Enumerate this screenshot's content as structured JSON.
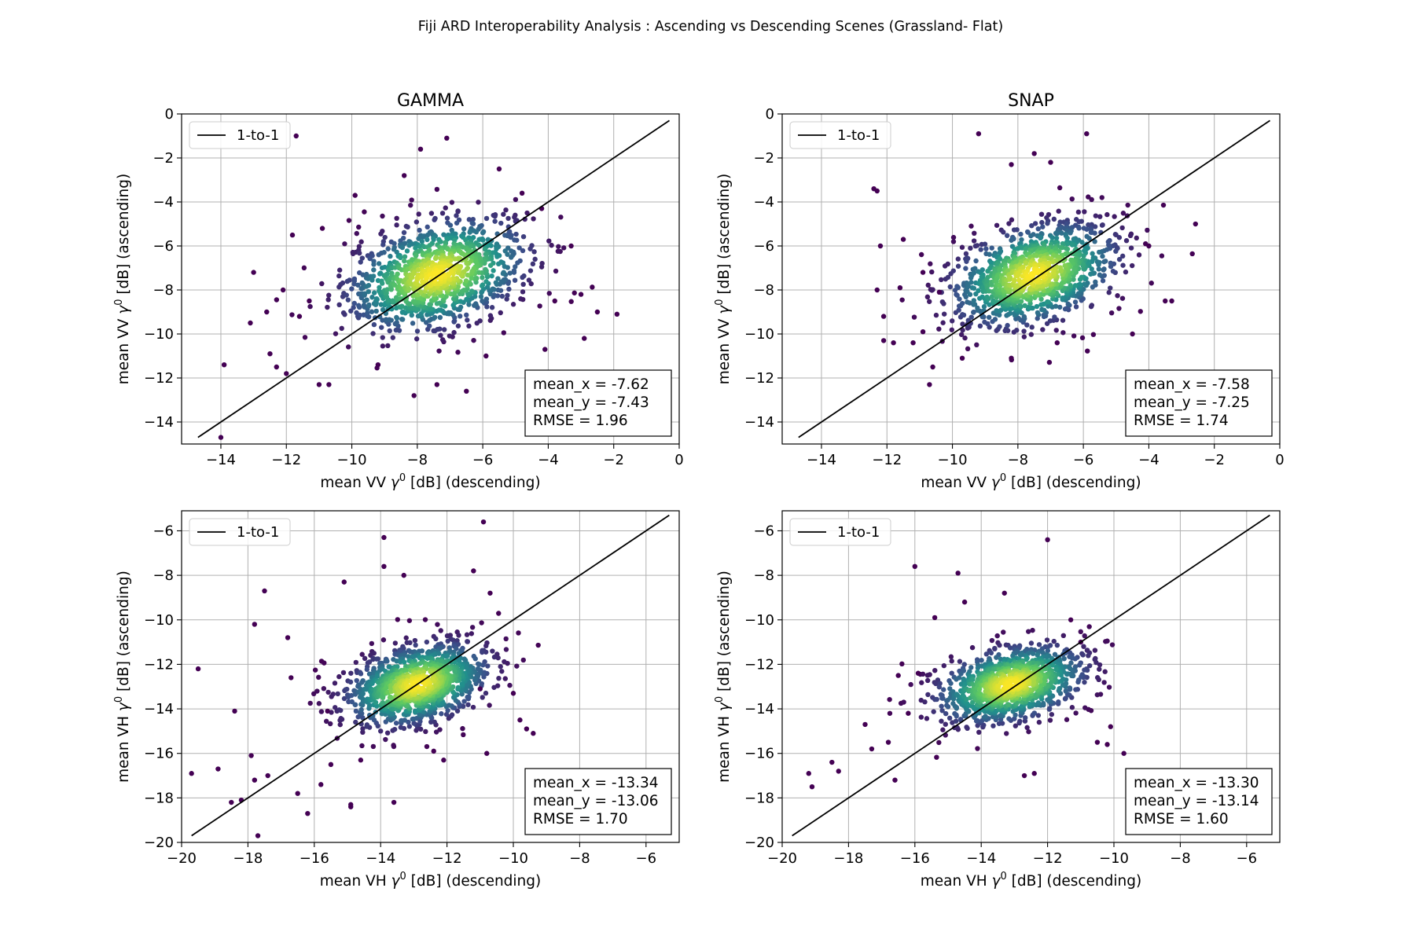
{
  "figure": {
    "title": "Fiji ARD Interoperability Analysis : Ascending vs Descending Scenes (Grassland- Flat)"
  },
  "colors": {
    "density_low": "#440154",
    "density_mid": "#21918c",
    "density_high": "#fde725",
    "reference_line": "#000000"
  },
  "chart_data": [
    {
      "type": "scatter",
      "title": "GAMMA",
      "xlabel": "mean VV γ0 [dB] (descending)",
      "ylabel": "mean VV γ0 [dB] (ascending)",
      "xlim": [
        -15.2,
        0
      ],
      "ylim": [
        -15,
        0
      ],
      "xticks": [
        -14,
        -12,
        -10,
        -8,
        -6,
        -4,
        -2,
        0
      ],
      "yticks": [
        -14,
        -12,
        -10,
        -8,
        -6,
        -4,
        -2,
        0
      ],
      "grid": true,
      "legend": {
        "position": "top-left",
        "entries": [
          "1-to-1"
        ]
      },
      "reference_line": {
        "name": "1-to-1",
        "from": [
          -14.7,
          -14.7
        ],
        "to": [
          -0.3,
          -0.3
        ]
      },
      "cluster": {
        "center": [
          -7.4,
          -7.3
        ],
        "spread": [
          1.4,
          1.3
        ],
        "count": 1100
      },
      "outliers": [
        [
          -14,
          -14.7
        ],
        [
          -13.9,
          -11.4
        ],
        [
          -13,
          -7.2
        ],
        [
          -13.1,
          -9.5
        ],
        [
          -12.6,
          -9
        ],
        [
          -12.5,
          -10.9
        ],
        [
          -12.3,
          -11.5
        ],
        [
          -12,
          -11.8
        ],
        [
          -11.6,
          -9.2
        ],
        [
          -11.3,
          -8.5
        ],
        [
          -11,
          -12.3
        ],
        [
          -10.7,
          -12.3
        ],
        [
          -11.7,
          -1
        ],
        [
          -7.9,
          -1.6
        ],
        [
          -7.1,
          -1.1
        ],
        [
          -5.5,
          -2.5
        ],
        [
          -8.4,
          -2.8
        ],
        [
          -6.5,
          -12.6
        ],
        [
          -8.1,
          -12.8
        ],
        [
          -4.2,
          -4.3
        ],
        [
          -3.3,
          -6
        ],
        [
          -2.9,
          -10.2
        ],
        [
          -2.5,
          -9
        ],
        [
          -1.9,
          -9.1
        ],
        [
          -4.1,
          -10.7
        ],
        [
          -5.9,
          -11
        ],
        [
          -9.2,
          -11.4
        ],
        [
          -7.4,
          -12.3
        ],
        [
          -3.8,
          -8.5
        ],
        [
          -9.9,
          -3.7
        ],
        [
          -10.9,
          -5.2
        ],
        [
          -4.8,
          -3.6
        ],
        [
          -3.0,
          -8.2
        ],
        [
          -12.1,
          -8.0
        ]
      ],
      "stats": {
        "mean_x": -7.62,
        "mean_y": -7.43,
        "RMSE": 1.96
      },
      "stats_text": [
        "mean_x = -7.62",
        "mean_y = -7.43",
        "RMSE = 1.96"
      ]
    },
    {
      "type": "scatter",
      "title": "SNAP",
      "xlabel": "mean VV γ0 [dB] (descending)",
      "ylabel": "mean VV γ0 [dB] (ascending)",
      "xlim": [
        -15.2,
        0
      ],
      "ylim": [
        -15,
        0
      ],
      "xticks": [
        -14,
        -12,
        -10,
        -8,
        -6,
        -4,
        -2,
        0
      ],
      "yticks": [
        -14,
        -12,
        -10,
        -8,
        -6,
        -4,
        -2,
        0
      ],
      "grid": true,
      "legend": {
        "position": "top-left",
        "entries": [
          "1-to-1"
        ]
      },
      "reference_line": {
        "name": "1-to-1",
        "from": [
          -14.7,
          -14.7
        ],
        "to": [
          -0.3,
          -0.3
        ]
      },
      "cluster": {
        "center": [
          -7.5,
          -7.3
        ],
        "spread": [
          1.3,
          1.2
        ],
        "count": 1100
      },
      "outliers": [
        [
          -12.4,
          -3.4
        ],
        [
          -12.3,
          -3.5
        ],
        [
          -12.2,
          -6
        ],
        [
          -12.1,
          -10.3
        ],
        [
          -12.3,
          -8
        ],
        [
          -12.1,
          -9.2
        ],
        [
          -11.5,
          -5.7
        ],
        [
          -11.8,
          -10.4
        ],
        [
          -11.2,
          -10.4
        ],
        [
          -10.9,
          -9.9
        ],
        [
          -10.6,
          -11.5
        ],
        [
          -10.7,
          -12.3
        ],
        [
          -9.2,
          -0.9
        ],
        [
          -7.5,
          -1.8
        ],
        [
          -5.9,
          -0.9
        ],
        [
          -8.2,
          -2.3
        ],
        [
          -7,
          -2.2
        ],
        [
          -3.5,
          -8.5
        ],
        [
          -3.3,
          -8.5
        ],
        [
          -4.1,
          -5.9
        ],
        [
          -4.5,
          -10
        ],
        [
          -4,
          -6
        ],
        [
          -9.7,
          -11.1
        ],
        [
          -8.2,
          -11.1
        ],
        [
          -6.8,
          -10.4
        ],
        [
          -10.9,
          -7.2
        ],
        [
          -10.4,
          -8.1
        ],
        [
          -11.6,
          -7.9
        ]
      ],
      "stats": {
        "mean_x": -7.58,
        "mean_y": -7.25,
        "RMSE": 1.74
      },
      "stats_text": [
        "mean_x = -7.58",
        "mean_y = -7.25",
        "RMSE = 1.74"
      ]
    },
    {
      "type": "scatter",
      "title": "",
      "xlabel": "mean VH γ0 [dB] (descending)",
      "ylabel": "mean VH γ0 [dB] (ascending)",
      "xlim": [
        -20,
        -5
      ],
      "ylim": [
        -20,
        -5.1
      ],
      "xticks": [
        -20,
        -18,
        -16,
        -14,
        -12,
        -10,
        -8,
        -6
      ],
      "yticks": [
        -20,
        -18,
        -16,
        -14,
        -12,
        -10,
        -8,
        -6
      ],
      "grid": true,
      "legend": {
        "position": "top-left",
        "entries": [
          "1-to-1"
        ]
      },
      "reference_line": {
        "name": "1-to-1",
        "from": [
          -19.7,
          -19.7
        ],
        "to": [
          -5.3,
          -5.3
        ]
      },
      "cluster": {
        "center": [
          -12.9,
          -12.9
        ],
        "spread": [
          1.1,
          0.95
        ],
        "count": 1100
      },
      "outliers": [
        [
          -19.7,
          -16.9
        ],
        [
          -19.5,
          -12.2
        ],
        [
          -18.9,
          -16.7
        ],
        [
          -18.5,
          -18.2
        ],
        [
          -18.4,
          -14.1
        ],
        [
          -18.2,
          -18.1
        ],
        [
          -17.9,
          -16.1
        ],
        [
          -17.8,
          -17.2
        ],
        [
          -17.7,
          -19.7
        ],
        [
          -17.4,
          -17
        ],
        [
          -17.5,
          -8.7
        ],
        [
          -17.8,
          -10.2
        ],
        [
          -16.8,
          -10.8
        ],
        [
          -16.7,
          -12.6
        ],
        [
          -16.5,
          -17.8
        ],
        [
          -16.2,
          -18.7
        ],
        [
          -15.8,
          -17.4
        ],
        [
          -15.5,
          -16.5
        ],
        [
          -14.9,
          -18.4
        ],
        [
          -14.9,
          -18.3
        ],
        [
          -13.9,
          -6.3
        ],
        [
          -13.6,
          -18.2
        ],
        [
          -13.9,
          -7.6
        ],
        [
          -13.3,
          -8
        ],
        [
          -15.1,
          -8.3
        ],
        [
          -11.2,
          -7.8
        ],
        [
          -10.9,
          -5.6
        ],
        [
          -10.7,
          -8.8
        ],
        [
          -9.6,
          -14.9
        ],
        [
          -9.4,
          -15.1
        ],
        [
          -9.8,
          -14.5
        ],
        [
          -10.8,
          -16
        ],
        [
          -12.1,
          -16.3
        ],
        [
          -12.4,
          -15.9
        ],
        [
          -11.0,
          -13.1
        ],
        [
          -10.0,
          -13.3
        ],
        [
          -14.6,
          -16.3
        ],
        [
          -15.6,
          -14.1
        ]
      ],
      "stats": {
        "mean_x": -13.34,
        "mean_y": -13.06,
        "RMSE": 1.7
      },
      "stats_text": [
        "mean_x = -13.34",
        "mean_y = -13.06",
        "RMSE = 1.70"
      ]
    },
    {
      "type": "scatter",
      "title": "",
      "xlabel": "mean VH γ0 [dB] (descending)",
      "ylabel": "mean VH γ0 [dB] (ascending)",
      "xlim": [
        -20,
        -5
      ],
      "ylim": [
        -20,
        -5.1
      ],
      "xticks": [
        -20,
        -18,
        -16,
        -14,
        -12,
        -10,
        -8,
        -6
      ],
      "yticks": [
        -20,
        -18,
        -16,
        -14,
        -12,
        -10,
        -8,
        -6
      ],
      "grid": true,
      "legend": {
        "position": "top-left",
        "entries": [
          "1-to-1"
        ]
      },
      "reference_line": {
        "name": "1-to-1",
        "from": [
          -19.7,
          -19.7
        ],
        "to": [
          -5.3,
          -5.3
        ]
      },
      "cluster": {
        "center": [
          -13.1,
          -12.9
        ],
        "spread": [
          1.15,
          0.9
        ],
        "count": 1100
      },
      "outliers": [
        [
          -19.2,
          -16.9
        ],
        [
          -19.1,
          -17.5
        ],
        [
          -18.5,
          -16.4
        ],
        [
          -18.3,
          -16.8
        ],
        [
          -17.5,
          -14.7
        ],
        [
          -17.3,
          -15.8
        ],
        [
          -16.8,
          -15.5
        ],
        [
          -16.6,
          -17.2
        ],
        [
          -16.2,
          -14.2
        ],
        [
          -16.0,
          -7.6
        ],
        [
          -14.7,
          -7.9
        ],
        [
          -14.5,
          -9.2
        ],
        [
          -13.3,
          -8.8
        ],
        [
          -12.0,
          -6.4
        ],
        [
          -11.3,
          -10.0
        ],
        [
          -11.0,
          -11.0
        ],
        [
          -9.7,
          -16.0
        ],
        [
          -10.2,
          -15.6
        ],
        [
          -10.1,
          -14.8
        ],
        [
          -10.5,
          -15.5
        ],
        [
          -12.4,
          -16.9
        ],
        [
          -12.7,
          -17.0
        ],
        [
          -15.9,
          -12.4
        ],
        [
          -16.5,
          -12.5
        ],
        [
          -15.4,
          -9.9
        ]
      ],
      "stats": {
        "mean_x": -13.3,
        "mean_y": -13.14,
        "RMSE": 1.6
      },
      "stats_text": [
        "mean_x = -13.30",
        "mean_y = -13.14",
        "RMSE = 1.60"
      ]
    }
  ]
}
